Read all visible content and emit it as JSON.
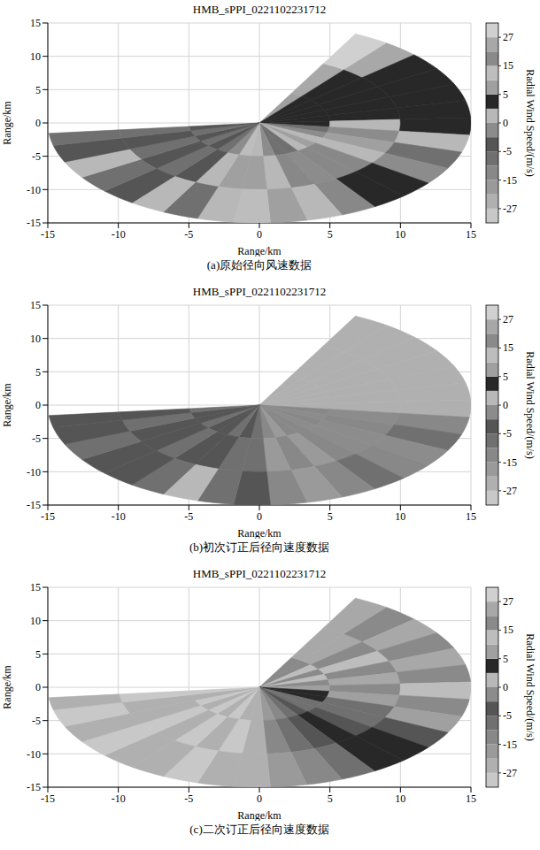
{
  "chart_data": [
    {
      "type": "heatmap",
      "title": "HMB_sPPI_0221102231712",
      "caption": "(a)原始径向风速数据",
      "x_label": "Range/km",
      "y_label": "Range/km",
      "xlim": [
        -15,
        15
      ],
      "ylim": [
        -15,
        15
      ],
      "xticks": [
        -15,
        -10,
        -5,
        0,
        5,
        10,
        15
      ],
      "yticks": [
        -15,
        -10,
        -5,
        0,
        5,
        10,
        15
      ],
      "grid": true,
      "azimuth_bins": [
        27,
        37,
        47,
        57,
        67,
        77,
        87,
        97,
        107,
        117,
        127,
        137,
        147,
        157,
        167,
        177,
        187,
        197,
        207,
        217,
        227,
        237,
        247,
        257,
        264
      ],
      "range_bins": [
        0,
        5,
        10,
        15
      ],
      "cells": [
        [
          7,
          24,
          30
        ],
        [
          4,
          4,
          24
        ],
        [
          4,
          4,
          4
        ],
        [
          4,
          4,
          4
        ],
        [
          4,
          4,
          4
        ],
        [
          4,
          4,
          4
        ],
        [
          4,
          1,
          4
        ],
        [
          -7,
          -1,
          1
        ],
        [
          -1,
          7,
          -7
        ],
        [
          1,
          1,
          -1
        ],
        [
          7,
          -12,
          4
        ],
        [
          1,
          -12,
          4
        ],
        [
          -7,
          -1,
          -12
        ],
        [
          -7,
          -12,
          1
        ],
        [
          -1,
          1,
          7
        ],
        [
          1,
          7,
          12
        ],
        [
          12,
          7,
          1
        ],
        [
          -1,
          1,
          -7
        ],
        [
          -7,
          -4,
          1
        ],
        [
          -4,
          -7,
          -4
        ],
        [
          -7,
          -4,
          -7
        ],
        [
          -4,
          -7,
          1
        ],
        [
          -7,
          -4,
          -4
        ],
        [
          -4,
          -7,
          -7
        ]
      ],
      "colorbar": {
        "label": "Radial Wind Speed/(m/s)",
        "range": [
          -33,
          33
        ],
        "bounds": [
          -33,
          -27,
          -21,
          -15,
          -10,
          -5,
          -2.5,
          0,
          2.5,
          5,
          10,
          15,
          21,
          27,
          33
        ],
        "colors": [
          "#c8c8c8",
          "#b0b0b0",
          "#9a9a9a",
          "#888888",
          "#707070",
          "#555555",
          "#8c8c8c",
          "#b8b8b8",
          "#282828",
          "#a0a0a0",
          "#bdbdbd",
          "#8a8a8a",
          "#a8a8a8",
          "#d0d0d0"
        ],
        "ticks": [
          27,
          15,
          5,
          0,
          -5,
          -15,
          -27
        ]
      }
    },
    {
      "type": "heatmap",
      "title": "HMB_sPPI_0221102231712",
      "caption": "(b)初次订正后径向速度数据",
      "x_label": "Range/km",
      "y_label": "Range/km",
      "xlim": [
        -15,
        15
      ],
      "ylim": [
        -15,
        15
      ],
      "xticks": [
        -15,
        -10,
        -5,
        0,
        5,
        10,
        15
      ],
      "yticks": [
        -15,
        -10,
        -5,
        0,
        5,
        10,
        15
      ],
      "grid": true,
      "azimuth_bins": [
        27,
        37,
        47,
        57,
        67,
        77,
        87,
        97,
        107,
        117,
        127,
        137,
        147,
        157,
        167,
        177,
        187,
        197,
        207,
        217,
        227,
        237,
        247,
        257,
        264
      ],
      "range_bins": [
        0,
        5,
        10,
        15
      ],
      "cells": [
        [
          -24,
          -24,
          -24
        ],
        [
          -24,
          -24,
          -24
        ],
        [
          -24,
          -24,
          -24
        ],
        [
          -24,
          -24,
          -24
        ],
        [
          -24,
          -24,
          -24
        ],
        [
          -24,
          -24,
          -24
        ],
        [
          -24,
          -24,
          -24
        ],
        [
          -12,
          -1,
          -12
        ],
        [
          -1,
          -12,
          -7
        ],
        [
          -12,
          -1,
          -1
        ],
        [
          -1,
          -1,
          -12
        ],
        [
          -12,
          -12,
          -7
        ],
        [
          -12,
          -18,
          -12
        ],
        [
          -18,
          -12,
          -18
        ],
        [
          -12,
          -18,
          -12
        ],
        [
          -7,
          -7,
          -4
        ],
        [
          -4,
          -7,
          -7
        ],
        [
          -7,
          -4,
          1
        ],
        [
          -4,
          -4,
          -7
        ],
        [
          -4,
          -7,
          -4
        ],
        [
          -7,
          -4,
          -4
        ],
        [
          -4,
          -4,
          -7
        ],
        [
          -4,
          -7,
          -4
        ],
        [
          -7,
          -4,
          -4
        ]
      ],
      "colorbar": {
        "label": "Radial Wind Speed/(m/s)",
        "range": [
          -33,
          33
        ],
        "bounds": [
          -33,
          -27,
          -21,
          -15,
          -10,
          -5,
          -2.5,
          0,
          2.5,
          5,
          10,
          15,
          21,
          27,
          33
        ],
        "colors": [
          "#c8c8c8",
          "#b0b0b0",
          "#9a9a9a",
          "#888888",
          "#707070",
          "#555555",
          "#8c8c8c",
          "#b8b8b8",
          "#282828",
          "#a0a0a0",
          "#bdbdbd",
          "#8a8a8a",
          "#a8a8a8",
          "#d0d0d0"
        ],
        "ticks": [
          27,
          15,
          5,
          0,
          -5,
          -15,
          -27
        ]
      }
    },
    {
      "type": "heatmap",
      "title": "HMB_sPPI_0221102231712",
      "caption": "(c)二次订正后径向速度数据",
      "x_label": "Range/km",
      "y_label": "Range/km",
      "xlim": [
        -15,
        15
      ],
      "ylim": [
        -15,
        15
      ],
      "xticks": [
        -15,
        -10,
        -5,
        0,
        5,
        10,
        15
      ],
      "yticks": [
        -15,
        -10,
        -5,
        0,
        5,
        10,
        15
      ],
      "grid": true,
      "azimuth_bins": [
        27,
        37,
        47,
        57,
        67,
        77,
        87,
        97,
        107,
        117,
        127,
        137,
        147,
        157,
        167,
        177,
        187,
        197,
        207,
        217,
        227,
        237,
        247,
        257,
        264
      ],
      "range_bins": [
        0,
        5,
        10,
        15
      ],
      "cells": [
        [
          18,
          24,
          24
        ],
        [
          18,
          24,
          18
        ],
        [
          12,
          18,
          24
        ],
        [
          18,
          12,
          18
        ],
        [
          12,
          18,
          24
        ],
        [
          18,
          24,
          18
        ],
        [
          7,
          18,
          12
        ],
        [
          4,
          7,
          18
        ],
        [
          4,
          -7,
          7
        ],
        [
          -7,
          -7,
          -4
        ],
        [
          -7,
          -4,
          4
        ],
        [
          -4,
          4,
          4
        ],
        [
          -7,
          -4,
          -7
        ],
        [
          -12,
          -7,
          -12
        ],
        [
          -18,
          -12,
          -18
        ],
        [
          -24,
          -24,
          -24
        ],
        [
          -24,
          -30,
          -24
        ],
        [
          -30,
          -24,
          -30
        ],
        [
          -24,
          -30,
          -24
        ],
        [
          -30,
          -24,
          -24
        ],
        [
          -24,
          -30,
          -30
        ],
        [
          -30,
          -24,
          -24
        ],
        [
          -24,
          -24,
          -30
        ],
        [
          -30,
          -30,
          -24
        ]
      ],
      "colorbar": {
        "label": "Radial Wind Speed/(m/s)",
        "range": [
          -33,
          33
        ],
        "bounds": [
          -33,
          -27,
          -21,
          -15,
          -10,
          -5,
          -2.5,
          0,
          2.5,
          5,
          10,
          15,
          21,
          27,
          33
        ],
        "colors": [
          "#c8c8c8",
          "#b0b0b0",
          "#9a9a9a",
          "#888888",
          "#707070",
          "#555555",
          "#8c8c8c",
          "#b8b8b8",
          "#282828",
          "#a0a0a0",
          "#bdbdbd",
          "#8a8a8a",
          "#a8a8a8",
          "#d0d0d0"
        ],
        "ticks": [
          27,
          15,
          5,
          0,
          -5,
          -15,
          -27
        ]
      }
    }
  ]
}
